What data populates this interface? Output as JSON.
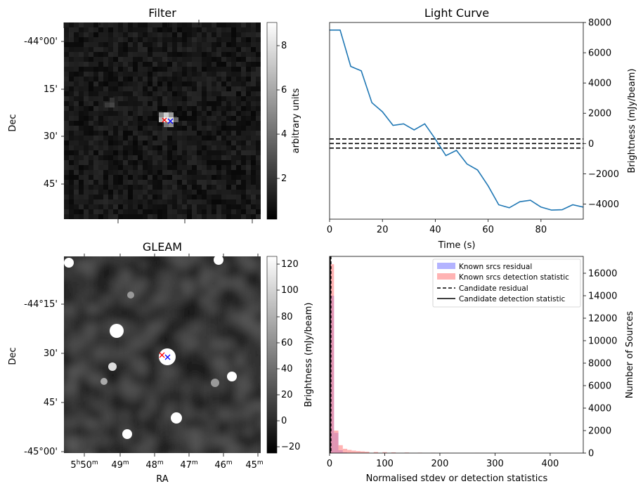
{
  "colors": {
    "line": "#1f77b4",
    "residual_hist": "#8080ff",
    "detection_hist": "#ff8080",
    "marker_red": "#ff0000",
    "marker_blue": "#0000ff"
  },
  "panels": {
    "filter": {
      "title": "Filter",
      "ylabel": "Dec",
      "yticks": [
        "-44°00'",
        "15'",
        "30'",
        "45'"
      ],
      "colorbar_label": "arbitrary units",
      "colorbar_ticks": [
        "2",
        "4",
        "6",
        "8"
      ],
      "colormap": "greyscale"
    },
    "gleam": {
      "title": "GLEAM",
      "ylabel": "Dec",
      "xlabel": "RA",
      "yticks": [
        "-44°15'",
        "30'",
        "45'",
        "-45°00'"
      ],
      "xticks": [
        {
          "h": "5",
          "m": "50"
        },
        {
          "h": "",
          "m": "49"
        },
        {
          "h": "",
          "m": "48"
        },
        {
          "h": "",
          "m": "47"
        },
        {
          "h": "",
          "m": "46"
        },
        {
          "h": "",
          "m": "45"
        }
      ],
      "colorbar_label": "Brightness (mJy/beam)",
      "colorbar_ticks": [
        "−20",
        "0",
        "20",
        "40",
        "60",
        "80",
        "100",
        "120"
      ],
      "colormap": "greyscale"
    }
  },
  "chart_data": [
    {
      "type": "line",
      "title": "Light Curve",
      "xlabel": "Time (s)",
      "ylabel": "Brightness (mJy/beam)",
      "xlim": [
        0,
        96
      ],
      "ylim": [
        -5000,
        8000
      ],
      "xticks": [
        "0",
        "20",
        "40",
        "60",
        "80"
      ],
      "yticks": [
        "−4000",
        "−2000",
        "0",
        "2000",
        "4000",
        "6000",
        "8000"
      ],
      "x": [
        0,
        4,
        8,
        12,
        16,
        20,
        24,
        28,
        32,
        36,
        40,
        44,
        48,
        52,
        56,
        60,
        64,
        68,
        72,
        76,
        80,
        84,
        88,
        92,
        96
      ],
      "y": [
        7500,
        7500,
        5100,
        4800,
        2700,
        2100,
        1200,
        1300,
        900,
        1300,
        300,
        -800,
        -450,
        -1350,
        -1750,
        -2800,
        -4050,
        -4250,
        -3850,
        -3750,
        -4200,
        -4400,
        -4380,
        -4050,
        -4200
      ],
      "hlines": [
        300,
        0,
        -300
      ]
    },
    {
      "type": "bar",
      "xlabel": "Normalised stdev or detection statistics",
      "ylabel": "Number of Sources",
      "xlim": [
        0,
        460
      ],
      "ylim": [
        0,
        17500
      ],
      "xticks": [
        "0",
        "100",
        "200",
        "300",
        "400"
      ],
      "yticks": [
        "0",
        "2000",
        "4000",
        "6000",
        "8000",
        "10000",
        "12000",
        "14000",
        "16000"
      ],
      "bin_width": 8,
      "series": [
        {
          "name": "Known srcs residual",
          "bin_starts": [
            0,
            8,
            16,
            24
          ],
          "values": [
            14000,
            1800,
            250,
            60
          ]
        },
        {
          "name": "Known srcs detection statistic",
          "bin_starts": [
            0,
            8,
            16,
            24,
            32,
            40,
            48,
            56,
            64,
            80,
            96,
            112,
            136,
            160,
            184,
            208,
            264,
            320,
            424
          ],
          "values": [
            16800,
            2000,
            700,
            380,
            280,
            220,
            180,
            150,
            120,
            90,
            80,
            60,
            45,
            35,
            30,
            25,
            15,
            10,
            8
          ]
        }
      ],
      "legend": [
        "Known srcs residual",
        "Known srcs detection statistic",
        "Candidate residual",
        "Candidate detection statistic"
      ],
      "legend_position": "top-right"
    }
  ]
}
